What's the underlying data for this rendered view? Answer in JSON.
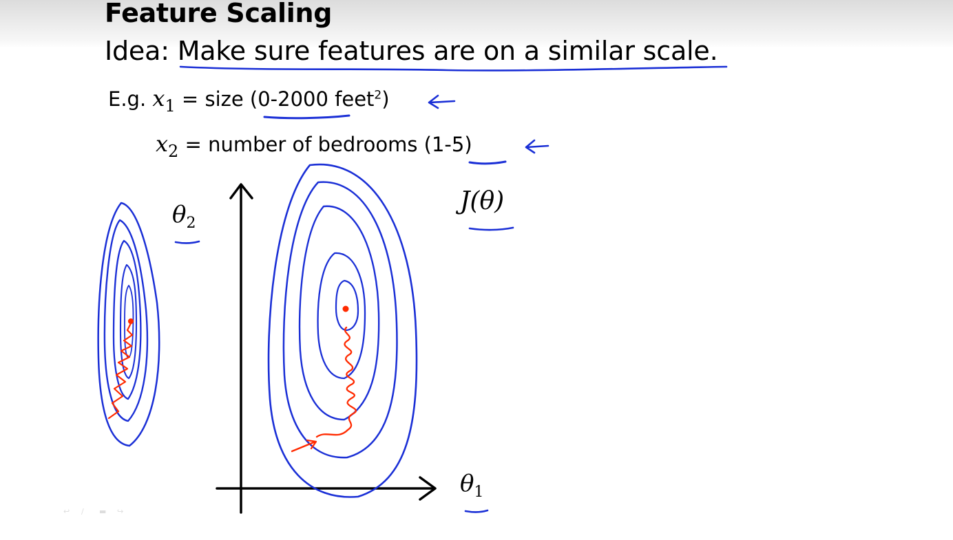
{
  "slide": {
    "title": "Feature Scaling",
    "idea_prefix": "Idea: ",
    "idea_text": "Make sure features are on a similar scale",
    "idea_period": "."
  },
  "examples": {
    "eg_prefix": "E.g. ",
    "x1_var": "x",
    "x1_sub": "1",
    "x1_desc_before": " = size (",
    "x1_range": "0-2000",
    "x1_unit": " feet",
    "x1_unit_sup": "2",
    "x1_close": ")",
    "x2_var": "x",
    "x2_sub": "2",
    "x2_desc_before": " = number of bedrooms (",
    "x2_range": "1-5",
    "x2_close": ")"
  },
  "graph": {
    "theta2_symbol": "θ",
    "theta2_sub": "2",
    "theta1_symbol": "θ",
    "theta1_sub": "1",
    "cost_label": "J(θ)"
  },
  "colors": {
    "ink_blue": "#1a2fd6",
    "ink_red": "#ff2a00",
    "axis_black": "#000000"
  },
  "player_controls": [
    "previous-icon",
    "pen-icon",
    "menu-icon",
    "next-icon"
  ]
}
